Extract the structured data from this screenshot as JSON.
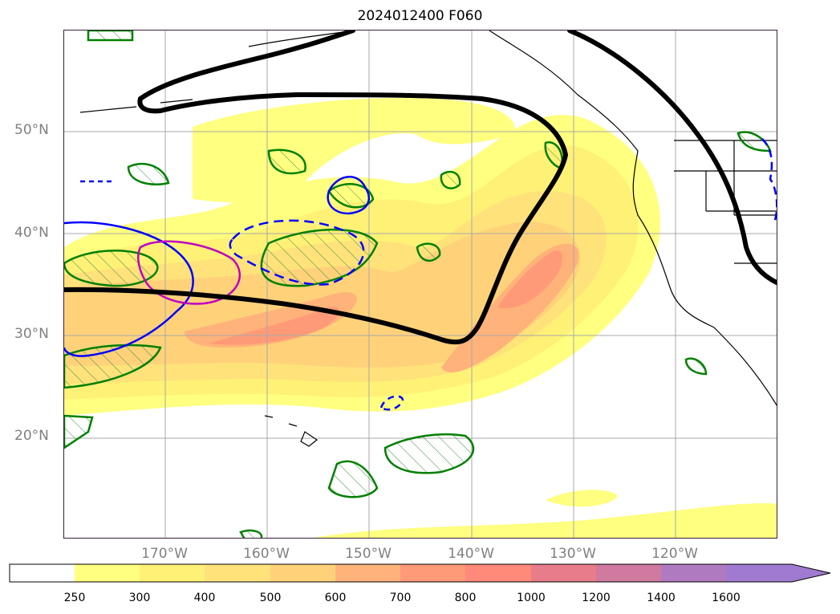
{
  "title": "2024012400 F060",
  "map": {
    "lat_labels": [
      "50°N",
      "40°N",
      "30°N",
      "20°N"
    ],
    "lon_labels": [
      "170°W",
      "160°W",
      "150°W",
      "140°W",
      "130°W",
      "120°W"
    ],
    "contour_colors": {
      "ridge_trough_line": "#000000",
      "green_hatched": "#008000",
      "blue_contour": "#0000ff",
      "magenta_contour": "#c000c0"
    }
  },
  "colorbar": {
    "ticks": [
      "250",
      "300",
      "400",
      "500",
      "600",
      "700",
      "800",
      "1000",
      "1200",
      "1400",
      "1600"
    ],
    "colors": [
      "#ffffff",
      "#ffff80",
      "#fff176",
      "#ffe27a",
      "#ffd27a",
      "#ffb27a",
      "#ff9a78",
      "#ff8a7a",
      "#e87c8a",
      "#d07aa0",
      "#b07ac0",
      "#a07ad0"
    ],
    "extend": "max"
  }
}
